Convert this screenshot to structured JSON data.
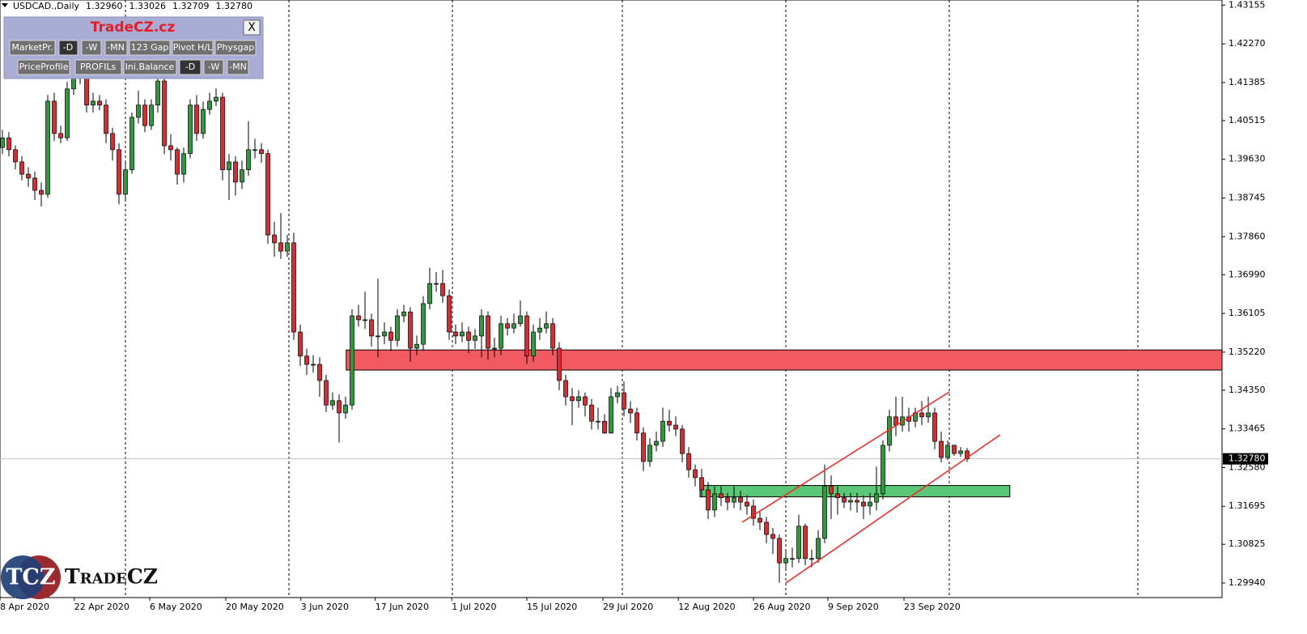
{
  "chart_data": {
    "type": "candlestick",
    "title": "USDCAD.,Daily",
    "ohlc_values": [
      1.3296,
      1.33026,
      1.32709,
      1.3278
    ],
    "ohlc_labels": [
      "1.32960",
      "1.33026",
      "1.32709",
      "1.32780"
    ],
    "up_color": "#2e9a3c",
    "down_color": "#e0282d",
    "xlim": [
      -0.375,
      188.375
    ],
    "ylim": [
      1.29607,
      1.43273
    ],
    "xticks": [
      {
        "value": -0.4,
        "label": "8 Apr 2020"
      },
      {
        "value": 11.1,
        "label": "22 Apr 2020"
      },
      {
        "value": 22.75,
        "label": "6 May 2020"
      },
      {
        "value": 34.5,
        "label": "20 May 2020"
      },
      {
        "value": 46.1,
        "label": "3 Jun 2020"
      },
      {
        "value": 57.6,
        "label": "17 Jun 2020"
      },
      {
        "value": 69.4,
        "label": "1 Jul 2020"
      },
      {
        "value": 81,
        "label": "15 Jul 2020"
      },
      {
        "value": 92.75,
        "label": "29 Jul 2020"
      },
      {
        "value": 104.4,
        "label": "12 Aug 2020"
      },
      {
        "value": 116,
        "label": "26 Aug 2020"
      },
      {
        "value": 127.5,
        "label": "9 Sep 2020"
      },
      {
        "value": 139.25,
        "label": "23 Sep 2020"
      }
    ],
    "yticks": [
      1.43155,
      {
        "value": 1.4227,
        "label": "1.42270"
      },
      1.41385,
      1.40515,
      {
        "value": 1.3963,
        "label": "1.39630"
      },
      1.38745,
      {
        "value": 1.3786,
        "label": "1.37860"
      },
      {
        "value": 1.3699,
        "label": "1.36990"
      },
      1.36105,
      {
        "value": 1.3522,
        "label": "1.35220"
      },
      {
        "value": 1.3435,
        "label": "1.34350"
      },
      1.33465,
      {
        "value": 1.3258,
        "label": "1.32580"
      },
      1.31695,
      1.30825,
      {
        "value": 1.2994,
        "label": "1.29940"
      }
    ],
    "current_price": {
      "value": 1.3278,
      "label": "1.32780"
    },
    "open": [
      1.399,
      1.4012,
      1.3985,
      1.3957,
      1.3929,
      1.392,
      1.3892,
      1.3883,
      1.4096,
      1.4022,
      1.4012,
      1.4124,
      1.4151,
      1.4188,
      1.4087,
      1.4096,
      1.4087,
      1.4022,
      1.3985,
      1.3883,
      1.3939,
      1.4059,
      1.4087,
      1.404,
      1.4087,
      1.4142,
      1.3994,
      1.3985,
      1.3929,
      1.3976,
      1.4087,
      1.4022,
      1.4077,
      1.4096,
      1.4105,
      1.3939,
      1.3957,
      1.3911,
      1.3939,
      1.3985,
      1.3985,
      1.3976,
      1.379,
      1.3772,
      1.3753,
      1.3772,
      1.3568,
      1.3513,
      1.3494,
      1.3494,
      1.3457,
      1.3401,
      1.3411,
      1.3383,
      1.3401,
      1.3605,
      1.3596,
      1.3596,
      1.3559,
      1.3559,
      1.3568,
      1.3549,
      1.3605,
      1.3614,
      1.3531,
      1.354,
      1.3633,
      1.3679,
      1.3679,
      1.3651,
      1.3568,
      1.3559,
      1.3568,
      1.3549,
      1.3559,
      1.3605,
      1.3531,
      1.3531,
      1.3587,
      1.3577,
      1.3587,
      1.3605,
      1.3513,
      1.3568,
      1.3577,
      1.3587,
      1.3531,
      1.3457,
      1.342,
      1.3411,
      1.342,
      1.3401,
      1.3364,
      1.3364,
      1.3337,
      1.342,
      1.3429,
      1.3392,
      1.3383,
      1.3337,
      1.3272,
      1.3309,
      1.3318,
      1.3364,
      1.3355,
      1.3346,
      1.329,
      1.3253,
      1.3235,
      1.3207,
      1.3161,
      1.3198,
      1.3189,
      1.3179,
      1.3189,
      1.3179,
      1.317,
      1.3142,
      1.3133,
      1.3105,
      1.3096,
      1.304,
      1.305,
      1.305,
      1.3124,
      1.305,
      1.305,
      1.3096,
      1.3216,
      1.3198,
      1.3189,
      1.3179,
      1.3183,
      1.3179,
      1.317,
      1.3179,
      1.3198,
      1.3309,
      1.3374,
      1.3355,
      1.3374,
      1.3364,
      1.3383,
      1.3374,
      1.3383,
      1.3318,
      1.3281,
      1.3309,
      1.329,
      1.3296
    ],
    "high": [
      1.403,
      1.4025,
      1.3995,
      1.397,
      1.3945,
      1.3935,
      1.391,
      1.411,
      1.4115,
      1.404,
      1.414,
      1.4253,
      1.423,
      1.42,
      1.4115,
      1.411,
      1.41,
      1.4035,
      1.4,
      1.3955,
      1.407,
      1.412,
      1.41,
      1.41,
      1.416,
      1.415,
      1.402,
      1.399,
      1.399,
      1.41,
      1.411,
      1.4095,
      1.4115,
      1.4125,
      1.4115,
      1.3975,
      1.397,
      1.396,
      1.405,
      1.401,
      1.4,
      1.3985,
      1.382,
      1.384,
      1.379,
      1.3795,
      1.3585,
      1.353,
      1.3515,
      1.351,
      1.347,
      1.343,
      1.3425,
      1.342,
      1.362,
      1.363,
      1.366,
      1.361,
      1.369,
      1.359,
      1.358,
      1.362,
      1.363,
      1.3625,
      1.356,
      1.365,
      1.3715,
      1.3705,
      1.371,
      1.3665,
      1.3585,
      1.359,
      1.358,
      1.3575,
      1.362,
      1.3615,
      1.3555,
      1.3605,
      1.36,
      1.361,
      1.364,
      1.3615,
      1.3585,
      1.36,
      1.3615,
      1.36,
      1.3545,
      1.347,
      1.344,
      1.3435,
      1.343,
      1.3415,
      1.3395,
      1.338,
      1.344,
      1.3445,
      1.3455,
      1.341,
      1.3395,
      1.335,
      1.3325,
      1.334,
      1.3395,
      1.339,
      1.3375,
      1.3355,
      1.3305,
      1.3265,
      1.3255,
      1.3225,
      1.3215,
      1.3215,
      1.32,
      1.3215,
      1.3205,
      1.3195,
      1.3185,
      1.316,
      1.3145,
      1.312,
      1.3105,
      1.307,
      1.3075,
      1.315,
      1.313,
      1.307,
      1.3115,
      1.3265,
      1.324,
      1.3215,
      1.32,
      1.32,
      1.32,
      1.3195,
      1.32,
      1.326,
      1.332,
      1.339,
      1.342,
      1.342,
      1.3395,
      1.3395,
      1.341,
      1.342,
      1.3395,
      1.334,
      1.332,
      1.331,
      1.3305,
      1.33026
    ],
    "low": [
      1.3975,
      1.397,
      1.394,
      1.3915,
      1.39,
      1.387,
      1.3855,
      1.3875,
      1.4005,
      1.4,
      1.4005,
      1.411,
      1.4135,
      1.407,
      1.407,
      1.4075,
      1.4,
      1.396,
      1.386,
      1.387,
      1.393,
      1.4045,
      1.4025,
      1.403,
      1.407,
      1.3975,
      1.396,
      1.3905,
      1.391,
      1.3965,
      1.4005,
      1.401,
      1.4065,
      1.4085,
      1.3915,
      1.387,
      1.388,
      1.3895,
      1.3925,
      1.3965,
      1.3955,
      1.377,
      1.374,
      1.3735,
      1.374,
      1.355,
      1.349,
      1.347,
      1.3475,
      1.342,
      1.3385,
      1.339,
      1.3315,
      1.337,
      1.339,
      1.358,
      1.3575,
      1.3535,
      1.351,
      1.354,
      1.3525,
      1.3535,
      1.359,
      1.35,
      1.3515,
      1.3525,
      1.362,
      1.366,
      1.3635,
      1.355,
      1.354,
      1.3545,
      1.352,
      1.353,
      1.351,
      1.3505,
      1.351,
      1.3515,
      1.356,
      1.3565,
      1.358,
      1.3495,
      1.35,
      1.355,
      1.3565,
      1.3515,
      1.3435,
      1.34,
      1.3355,
      1.3395,
      1.3375,
      1.3345,
      1.3345,
      1.3335,
      1.3335,
      1.3405,
      1.3375,
      1.336,
      1.332,
      1.325,
      1.326,
      1.3295,
      1.3305,
      1.334,
      1.333,
      1.327,
      1.3235,
      1.3215,
      1.319,
      1.314,
      1.3145,
      1.317,
      1.316,
      1.3165,
      1.316,
      1.315,
      1.3125,
      1.3115,
      1.3085,
      1.306,
      1.2995,
      1.3025,
      1.303,
      1.304,
      1.3035,
      1.303,
      1.304,
      1.3085,
      1.314,
      1.315,
      1.3165,
      1.316,
      1.3155,
      1.314,
      1.315,
      1.316,
      1.3185,
      1.3295,
      1.333,
      1.334,
      1.334,
      1.335,
      1.3355,
      1.336,
      1.33,
      1.327,
      1.3275,
      1.3285,
      1.3282,
      1.32709
    ],
    "close": [
      1.4012,
      1.3985,
      1.3957,
      1.3929,
      1.392,
      1.3892,
      1.3883,
      1.4096,
      1.4022,
      1.4012,
      1.4124,
      1.4151,
      1.4188,
      1.4087,
      1.4096,
      1.4087,
      1.4022,
      1.3985,
      1.3883,
      1.3939,
      1.4059,
      1.4087,
      1.404,
      1.4087,
      1.4142,
      1.3994,
      1.3985,
      1.3929,
      1.3976,
      1.4087,
      1.4022,
      1.4077,
      1.4096,
      1.4105,
      1.3939,
      1.3957,
      1.3911,
      1.3939,
      1.3985,
      1.3985,
      1.3976,
      1.379,
      1.3772,
      1.3753,
      1.3772,
      1.3568,
      1.3513,
      1.3494,
      1.3494,
      1.3457,
      1.3401,
      1.3411,
      1.3383,
      1.3401,
      1.3605,
      1.3596,
      1.3596,
      1.3559,
      1.3559,
      1.3568,
      1.3549,
      1.3605,
      1.3614,
      1.3531,
      1.354,
      1.3633,
      1.3679,
      1.3679,
      1.3651,
      1.3568,
      1.3559,
      1.3568,
      1.3549,
      1.3559,
      1.3605,
      1.3531,
      1.3531,
      1.3587,
      1.3577,
      1.3587,
      1.3605,
      1.3513,
      1.3568,
      1.3577,
      1.3587,
      1.3531,
      1.3457,
      1.342,
      1.3411,
      1.342,
      1.3401,
      1.3364,
      1.3364,
      1.3337,
      1.342,
      1.3429,
      1.3392,
      1.3383,
      1.3337,
      1.3272,
      1.3309,
      1.3318,
      1.3364,
      1.3355,
      1.3346,
      1.329,
      1.3253,
      1.3235,
      1.3207,
      1.3161,
      1.3198,
      1.3189,
      1.3179,
      1.3189,
      1.3179,
      1.317,
      1.3142,
      1.3133,
      1.3105,
      1.3096,
      1.304,
      1.305,
      1.305,
      1.3124,
      1.305,
      1.305,
      1.3096,
      1.3216,
      1.3198,
      1.3189,
      1.3179,
      1.3183,
      1.3179,
      1.317,
      1.3179,
      1.3198,
      1.3309,
      1.3374,
      1.3355,
      1.3374,
      1.3364,
      1.3383,
      1.3374,
      1.3383,
      1.3318,
      1.3281,
      1.3309,
      1.329,
      1.3296,
      1.3278
    ],
    "zones": [
      {
        "x": [
          53.1,
          188.375
        ],
        "y": [
          1.3527,
          1.3481
        ],
        "color": "#f25a61"
      },
      {
        "x": [
          107.75,
          155.6
        ],
        "y": [
          1.3217,
          1.3191
        ],
        "color": "#5cc677"
      }
    ],
    "trend_lines": [
      {
        "x": [
          114.25,
          146.25
        ],
        "y": [
          1.3133,
          1.3431
        ],
        "color": "#ff2020"
      },
      {
        "x": [
          121,
          154.1
        ],
        "y": [
          1.2994,
          1.3333
        ],
        "color": "#ff2020"
      }
    ]
  },
  "panel": {
    "title": "TradeCZ.cz",
    "close": "X",
    "buttons": [
      [
        "MarketPr.",
        "-D",
        "-W",
        "-MN",
        "123 Gap",
        "Pivot H/L",
        "Physgap"
      ],
      [
        "PriceProfile",
        "PROFILs",
        "Ini.Balance",
        "-D",
        "-W",
        "-MN"
      ]
    ]
  },
  "logo": {
    "badge": "TCZ",
    "name": "TradeCZ"
  }
}
